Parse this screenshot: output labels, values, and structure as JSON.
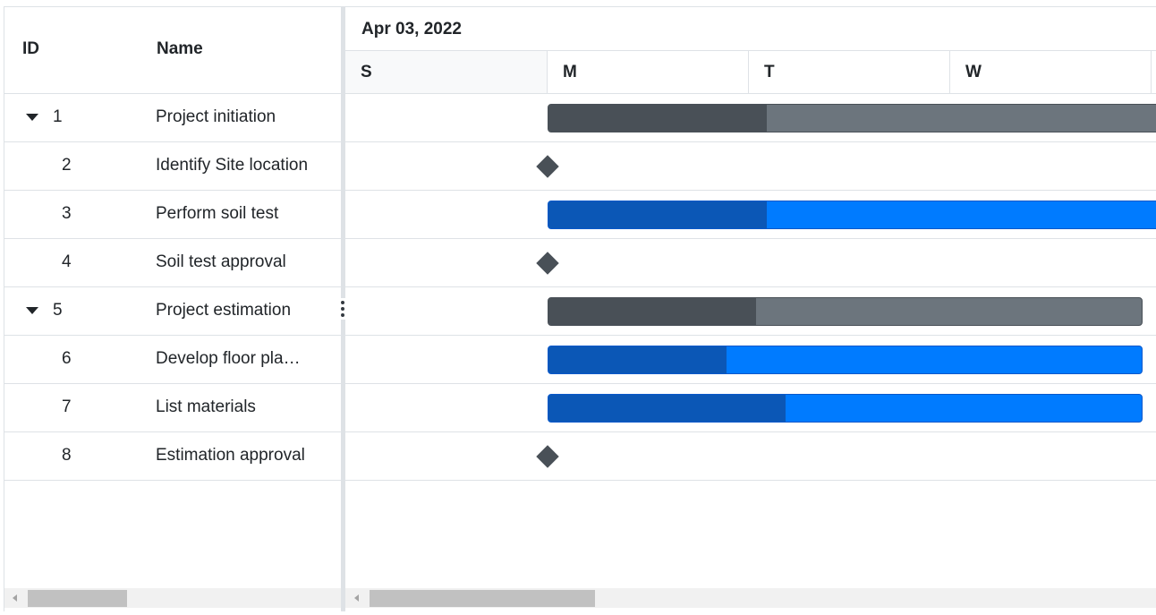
{
  "grid": {
    "columns": {
      "id": "ID",
      "name": "Name"
    },
    "rows": [
      {
        "id": "1",
        "name": "Project initiation",
        "parent": true
      },
      {
        "id": "2",
        "name": "Identify Site location",
        "parent": false
      },
      {
        "id": "3",
        "name": "Perform soil test",
        "parent": false
      },
      {
        "id": "4",
        "name": "Soil test approval",
        "parent": false
      },
      {
        "id": "5",
        "name": "Project estimation",
        "parent": true
      },
      {
        "id": "6",
        "name": "Develop floor pla…",
        "parent": false
      },
      {
        "id": "7",
        "name": "List materials",
        "parent": false
      },
      {
        "id": "8",
        "name": "Estimation approval",
        "parent": false
      }
    ]
  },
  "timeline": {
    "week_label": "Apr 03, 2022",
    "days": [
      "S",
      "M",
      "T",
      "W"
    ]
  },
  "tasks": [
    {
      "id": "1",
      "type": "parent",
      "progress": 0.35
    },
    {
      "id": "2",
      "type": "milestone"
    },
    {
      "id": "3",
      "type": "child",
      "progress": 0.35
    },
    {
      "id": "4",
      "type": "milestone"
    },
    {
      "id": "5",
      "type": "parent",
      "progress": 0.35
    },
    {
      "id": "6",
      "type": "child",
      "progress": 0.3
    },
    {
      "id": "7",
      "type": "child",
      "progress": 0.4
    },
    {
      "id": "8",
      "type": "milestone"
    }
  ],
  "colors": {
    "parent_bar": "#6c757d",
    "parent_progress": "#495057",
    "child_bar": "#007bff",
    "child_progress": "#0b57b6",
    "milestone": "#495057"
  }
}
